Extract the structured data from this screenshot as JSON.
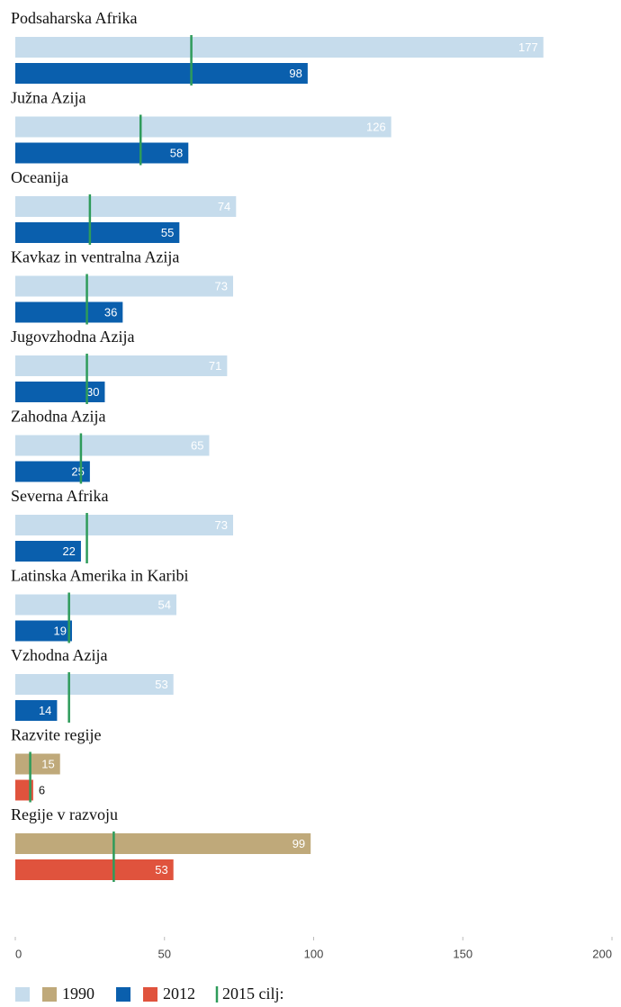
{
  "chart_data": {
    "type": "bar",
    "orientation": "horizontal",
    "categories": [
      "Podsaharska Afrika",
      "Južna Azija",
      "Oceanija",
      "Kavkaz in ventralna Azija",
      "Jugovzhodna Azija",
      "Zahodna Azija",
      "Severna Afrika",
      "Latinska Amerika in Karibi",
      "Vzhodna Azija",
      "Razvite regije",
      "Regije v razvoju"
    ],
    "series": [
      {
        "name": "1990",
        "colors": [
          "#c6dcec",
          "#c6dcec",
          "#c6dcec",
          "#c6dcec",
          "#c6dcec",
          "#c6dcec",
          "#c6dcec",
          "#c6dcec",
          "#c6dcec",
          "#bfa97a",
          "#bfa97a"
        ],
        "values": [
          177,
          126,
          74,
          73,
          71,
          65,
          73,
          54,
          53,
          15,
          99
        ]
      },
      {
        "name": "2012",
        "colors": [
          "#0a5fad",
          "#0a5fad",
          "#0a5fad",
          "#0a5fad",
          "#0a5fad",
          "#0a5fad",
          "#0a5fad",
          "#0a5fad",
          "#0a5fad",
          "#e0533d",
          "#e0533d"
        ],
        "values": [
          98,
          58,
          55,
          36,
          30,
          25,
          22,
          19,
          14,
          6,
          53
        ]
      },
      {
        "name": "2015 cilj:",
        "color": "#2e9b5a",
        "style": "target-line",
        "values": [
          59,
          42,
          25,
          24,
          24,
          22,
          24,
          18,
          18,
          5,
          33
        ]
      }
    ],
    "xlim": [
      0,
      200
    ],
    "xticks": [
      0,
      50,
      100,
      150,
      200
    ]
  }
}
